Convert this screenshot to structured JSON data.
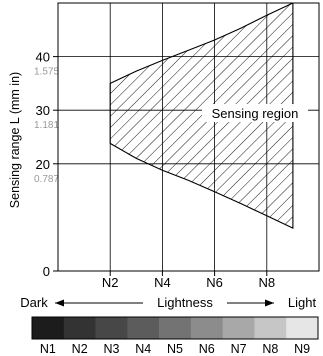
{
  "chart_data": {
    "type": "area",
    "ylabel": "Sensing range L (mm in)",
    "xlabel": "Lightness",
    "x_ticks": [
      "N2",
      "N4",
      "N6",
      "N8"
    ],
    "x_range": [
      0,
      10
    ],
    "ylim": [
      0,
      50
    ],
    "y_ticks": [
      {
        "value": 40,
        "label": "40",
        "sub": "1.575"
      },
      {
        "value": 30,
        "label": "30",
        "sub": "1.181"
      },
      {
        "value": 20,
        "label": "20",
        "sub": "0.787"
      },
      {
        "value": 0,
        "label": "0",
        "sub": ""
      }
    ],
    "region_label": "Sensing region",
    "region": {
      "upper": [
        [
          2,
          35
        ],
        [
          3,
          37.3
        ],
        [
          4,
          39.3
        ],
        [
          5,
          41.2
        ],
        [
          6,
          43.1
        ],
        [
          7,
          45.3
        ],
        [
          8,
          47.7
        ],
        [
          9,
          50
        ]
      ],
      "lower": [
        [
          9,
          8
        ],
        [
          8,
          10.3
        ],
        [
          7,
          12.6
        ],
        [
          6,
          14.8
        ],
        [
          5,
          16.9
        ],
        [
          4,
          18.8
        ],
        [
          3,
          21
        ],
        [
          2,
          23.8
        ]
      ]
    },
    "dark_label": "Dark",
    "light_label": "Light",
    "scale": {
      "labels": [
        "N1",
        "N2",
        "N3",
        "N4",
        "N5",
        "N6",
        "N7",
        "N8",
        "N9"
      ],
      "colors": [
        "#1c1c1c",
        "#333333",
        "#474747",
        "#5c5c5c",
        "#737373",
        "#8c8c8c",
        "#a8a8a8",
        "#c6c6c6",
        "#e6e6e6"
      ]
    }
  }
}
